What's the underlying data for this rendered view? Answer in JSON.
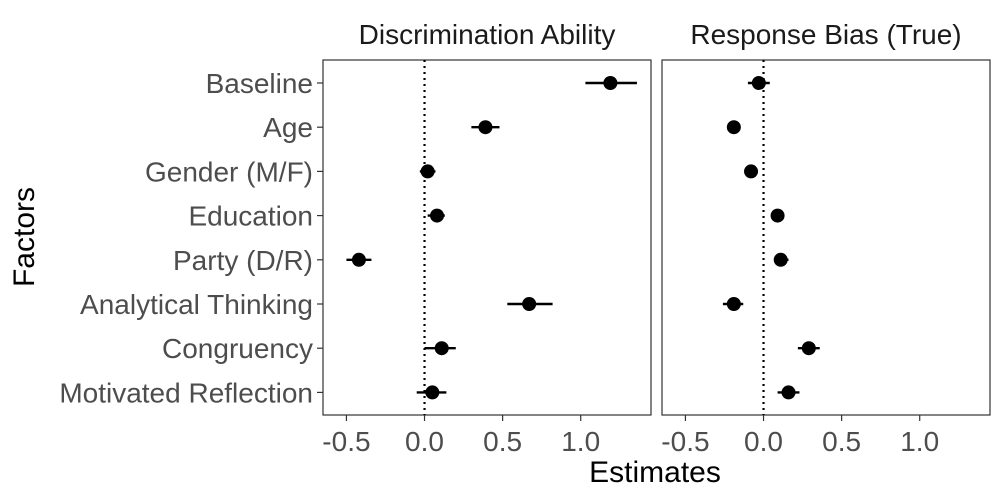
{
  "chart_data": {
    "type": "scatter",
    "subtype": "coefficient-plot-with-error-bars",
    "xlabel": "Estimates",
    "ylabel": "Factors",
    "categories": [
      "Baseline",
      "Age",
      "Gender (M/F)",
      "Education",
      "Party (D/R)",
      "Analytical Thinking",
      "Congruency",
      "Motivated Reflection"
    ],
    "xlim": [
      -0.65,
      1.45
    ],
    "xticks": [
      -0.5,
      0.0,
      0.5,
      1.0
    ],
    "xtick_labels": [
      "-0.5",
      "0.0",
      "0.5",
      "1.0"
    ],
    "reference_line": 0.0,
    "grid": false,
    "panels": [
      {
        "title": "Discrimination Ability",
        "points": [
          {
            "category": "Baseline",
            "estimate": 1.19,
            "lower": 1.03,
            "upper": 1.36
          },
          {
            "category": "Age",
            "estimate": 0.39,
            "lower": 0.3,
            "upper": 0.48
          },
          {
            "category": "Gender (M/F)",
            "estimate": 0.02,
            "lower": -0.03,
            "upper": 0.07
          },
          {
            "category": "Education",
            "estimate": 0.08,
            "lower": 0.02,
            "upper": 0.13
          },
          {
            "category": "Party (D/R)",
            "estimate": -0.42,
            "lower": -0.5,
            "upper": -0.34
          },
          {
            "category": "Analytical Thinking",
            "estimate": 0.67,
            "lower": 0.53,
            "upper": 0.82
          },
          {
            "category": "Congruency",
            "estimate": 0.11,
            "lower": 0.0,
            "upper": 0.2
          },
          {
            "category": "Motivated Reflection",
            "estimate": 0.05,
            "lower": -0.05,
            "upper": 0.14
          }
        ]
      },
      {
        "title": "Response Bias (True)",
        "points": [
          {
            "category": "Baseline",
            "estimate": -0.03,
            "lower": -0.1,
            "upper": 0.04
          },
          {
            "category": "Age",
            "estimate": -0.19,
            "lower": -0.21,
            "upper": -0.17
          },
          {
            "category": "Gender (M/F)",
            "estimate": -0.08,
            "lower": -0.1,
            "upper": -0.06
          },
          {
            "category": "Education",
            "estimate": 0.09,
            "lower": 0.07,
            "upper": 0.11
          },
          {
            "category": "Party (D/R)",
            "estimate": 0.11,
            "lower": 0.07,
            "upper": 0.16
          },
          {
            "category": "Analytical Thinking",
            "estimate": -0.19,
            "lower": -0.26,
            "upper": -0.13
          },
          {
            "category": "Congruency",
            "estimate": 0.29,
            "lower": 0.22,
            "upper": 0.36
          },
          {
            "category": "Motivated Reflection",
            "estimate": 0.16,
            "lower": 0.09,
            "upper": 0.23
          }
        ]
      }
    ]
  },
  "colors": {
    "point": "#000000",
    "panel_border": "#333333",
    "reference_line": "#000000",
    "tick_label": "#4d4d4d",
    "background": "#ffffff"
  }
}
